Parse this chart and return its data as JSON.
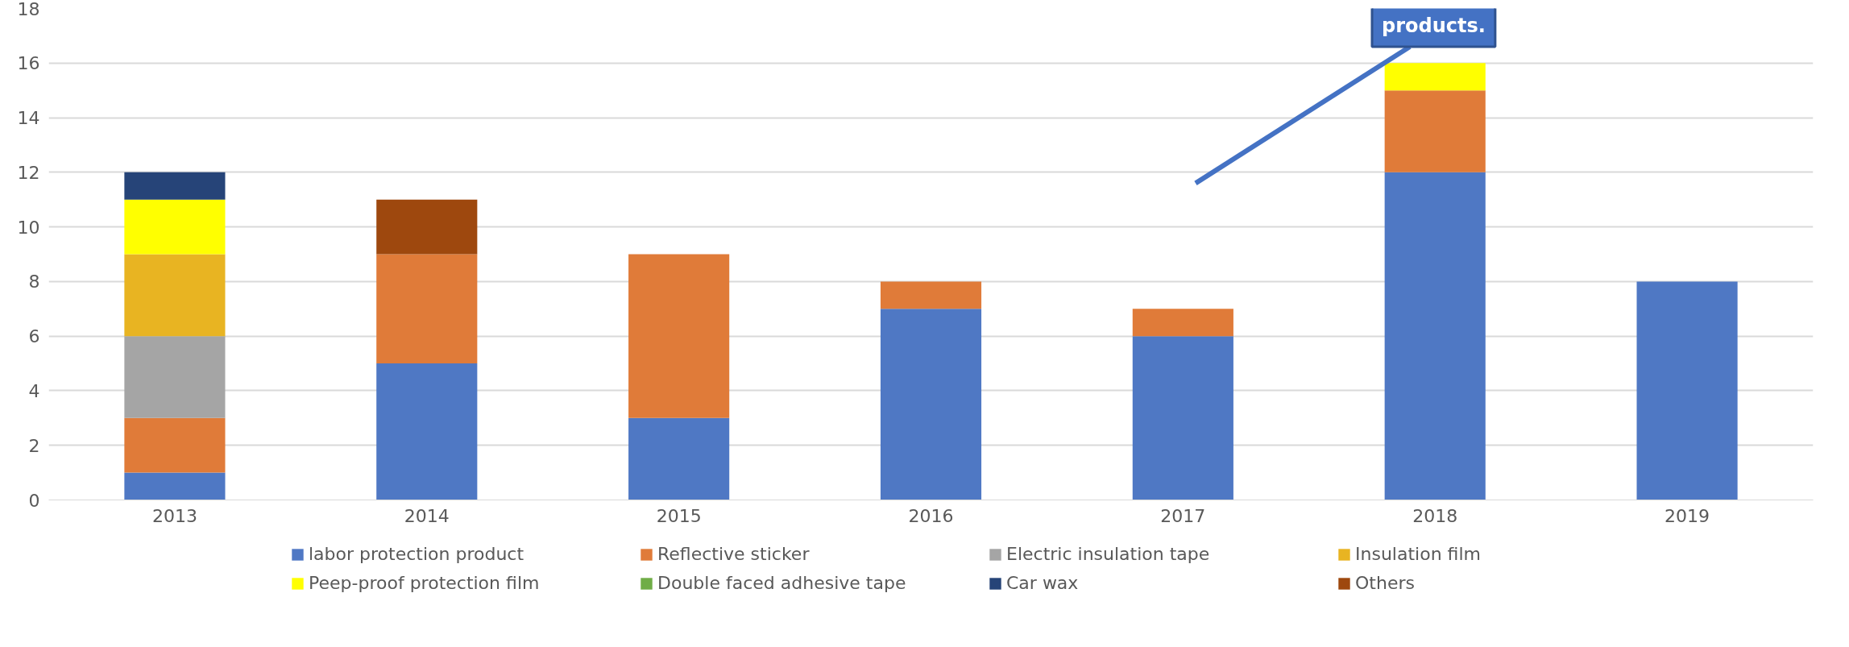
{
  "chart_data": {
    "type": "bar",
    "stacked": true,
    "categories": [
      "2013",
      "2014",
      "2015",
      "2016",
      "2017",
      "2018",
      "2019"
    ],
    "series": [
      {
        "name": "labor protection product",
        "color": "#4f78c4",
        "values": [
          1,
          5,
          3,
          7,
          6,
          12,
          8
        ]
      },
      {
        "name": "Reflective sticker",
        "color": "#e07b39",
        "values": [
          2,
          4,
          6,
          1,
          1,
          3,
          null
        ]
      },
      {
        "name": "Electric insulation tape",
        "color": "#a5a5a5",
        "values": [
          3,
          null,
          null,
          null,
          null,
          null,
          null
        ]
      },
      {
        "name": "Insulation film",
        "color": "#e8b422",
        "values": [
          3,
          null,
          null,
          null,
          null,
          null,
          null
        ]
      },
      {
        "name": "Peep-proof protection film",
        "color": "#ffff00",
        "values": [
          2,
          null,
          null,
          null,
          null,
          1,
          null
        ]
      },
      {
        "name": "Double faced adhesive tape",
        "color": "#70ad47",
        "values": [
          null,
          null,
          null,
          null,
          null,
          null,
          null
        ]
      },
      {
        "name": "Car wax",
        "color": "#264478",
        "values": [
          1,
          null,
          null,
          null,
          null,
          null,
          null
        ]
      },
      {
        "name": "Others",
        "color": "#9e480e",
        "values": [
          null,
          2,
          null,
          null,
          null,
          null,
          null
        ]
      }
    ],
    "ylim": [
      0,
      18
    ],
    "yticks": [
      0,
      2,
      4,
      6,
      8,
      10,
      12,
      14,
      16,
      18
    ],
    "grid": "y",
    "legend": "bottom",
    "annotations": [
      "products."
    ]
  }
}
